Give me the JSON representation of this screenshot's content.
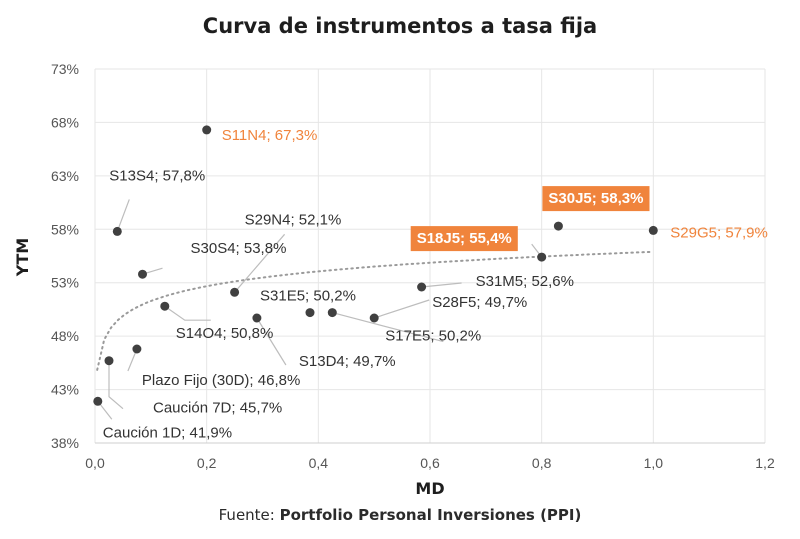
{
  "chart_data": {
    "type": "scatter",
    "title": "Curva de instrumentos a tasa fija",
    "xlabel": "MD",
    "ylabel": "YTM",
    "xlim": [
      0,
      1.2
    ],
    "ylim": [
      38,
      73
    ],
    "x_ticks": [
      "0,0",
      "0,2",
      "0,4",
      "0,6",
      "0,8",
      "1,0",
      "1,2"
    ],
    "y_ticks": [
      "38%",
      "43%",
      "48%",
      "53%",
      "58%",
      "63%",
      "68%",
      "73%"
    ],
    "grid": true,
    "legend": "none",
    "trendline": "logarithmic (dotted)",
    "colors": {
      "point": "#404040",
      "highlight": "#f0843c",
      "text": "#333333",
      "grid": "#e6e6e6"
    },
    "points": [
      {
        "x": 0.2,
        "y": 67.3,
        "label": "S11N4; 67,3%",
        "style": "orange"
      },
      {
        "x": 0.04,
        "y": 57.8,
        "label": "S13S4; 57,8%",
        "style": "normal"
      },
      {
        "x": 0.085,
        "y": 53.8,
        "label": "S30S4; 53,8%",
        "style": "normal"
      },
      {
        "x": 0.25,
        "y": 52.1,
        "label": "S29N4; 52,1%",
        "style": "normal"
      },
      {
        "x": 0.125,
        "y": 50.8,
        "label": "S14O4; 50,8%",
        "style": "normal"
      },
      {
        "x": 0.385,
        "y": 50.2,
        "label": "S31E5; 50,2%",
        "style": "normal"
      },
      {
        "x": 0.29,
        "y": 49.7,
        "label": "S13D4; 49,7%",
        "style": "normal"
      },
      {
        "x": 0.425,
        "y": 50.2,
        "label": "S17E5; 50,2%",
        "style": "normal"
      },
      {
        "x": 0.5,
        "y": 49.7,
        "label": "S28F5; 49,7%",
        "style": "normal"
      },
      {
        "x": 0.585,
        "y": 52.6,
        "label": "S31M5; 52,6%",
        "style": "normal"
      },
      {
        "x": 0.8,
        "y": 55.4,
        "label": "S18J5; 55,4%",
        "style": "boxed"
      },
      {
        "x": 0.83,
        "y": 58.3,
        "label": "S30J5; 58,3%",
        "style": "boxed"
      },
      {
        "x": 1.0,
        "y": 57.9,
        "label": "S29G5; 57,9%",
        "style": "orange"
      },
      {
        "x": 0.075,
        "y": 46.8,
        "label": "Plazo Fijo (30D); 46,8%",
        "style": "normal"
      },
      {
        "x": 0.025,
        "y": 45.7,
        "label": "Caución 7D; 45,7%",
        "style": "normal"
      },
      {
        "x": 0.005,
        "y": 41.9,
        "label": "Caución 1D; 41,9%",
        "style": "normal"
      }
    ]
  },
  "source": {
    "prefix": "Fuente: ",
    "name": "Portfolio Personal Inversiones (PPI)"
  }
}
